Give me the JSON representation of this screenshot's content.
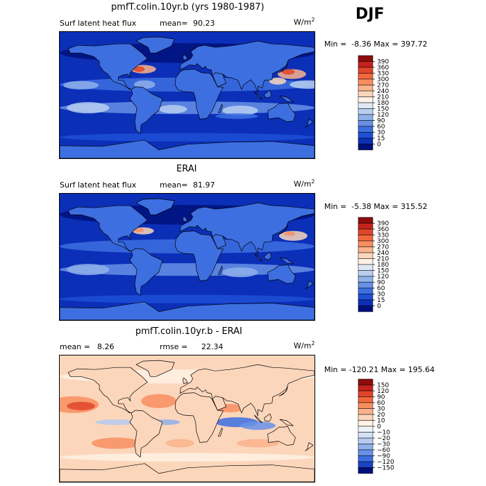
{
  "season": "DJF",
  "panels": [
    {
      "title": "pmfT.colin.10yr.b (yrs 1980-1987)",
      "left_label": "Surf latent heat flux",
      "stat_label": "mean=",
      "stat_value": "90.23",
      "stat2_label": "",
      "stat2_value": "",
      "units_base": "W/m",
      "units_exp": "2",
      "min_label": "Min =",
      "min_value": "-8.36",
      "max_label": "Max =",
      "max_value": "397.72",
      "palette": "seq",
      "ticks": [
        "390",
        "360",
        "330",
        "300",
        "270",
        "240",
        "210",
        "180",
        "150",
        "120",
        "90",
        "60",
        "30",
        "15",
        "0"
      ]
    },
    {
      "title": "ERAI",
      "left_label": "Surf latent heat flux",
      "stat_label": "mean=",
      "stat_value": "81.97",
      "stat2_label": "",
      "stat2_value": "",
      "units_base": "W/m",
      "units_exp": "2",
      "min_label": "Min =",
      "min_value": "-5.38",
      "max_label": "Max =",
      "max_value": "315.52",
      "palette": "seq",
      "ticks": [
        "390",
        "360",
        "330",
        "300",
        "270",
        "240",
        "210",
        "180",
        "150",
        "120",
        "90",
        "60",
        "30",
        "15",
        "0"
      ]
    },
    {
      "title": "pmfT.colin.10yr.b - ERAI",
      "left_label": "mean =",
      "stat_label": "",
      "stat_value": "8.26",
      "stat2_label": "rmse =",
      "stat2_value": "22.34",
      "units_base": "W/m",
      "units_exp": "2",
      "min_label": "Min =",
      "min_value": "-120.21",
      "max_label": "Max =",
      "max_value": "195.64",
      "palette": "div",
      "ticks": [
        "150",
        "120",
        "90",
        "60",
        "30",
        "20",
        "10",
        "0",
        "−10",
        "−20",
        "−30",
        "−60",
        "−90",
        "−120",
        "−150"
      ]
    }
  ],
  "colors": {
    "seq": [
      "#8b0d0d",
      "#c4221c",
      "#e0452c",
      "#f2693e",
      "#f88e60",
      "#fab38c",
      "#fcd6bb",
      "#fff1e4",
      "#dfe9f6",
      "#b9cff0",
      "#8fb0ea",
      "#6790e6",
      "#3d6fe0",
      "#1f4fd6",
      "#0c2fb8",
      "#00107a"
    ],
    "div": [
      "#8b0d0d",
      "#c4221c",
      "#e0452c",
      "#f2693e",
      "#f88e60",
      "#fab38c",
      "#fcd6bb",
      "#fff1e4",
      "#eef3fb",
      "#d4e1f5",
      "#b5caef",
      "#8fb0ea",
      "#6790e6",
      "#3d6fe0",
      "#1a44c4",
      "#00107a"
    ]
  },
  "chart_data": [
    {
      "type": "heatmap",
      "title": "pmfT.colin.10yr.b (yrs 1980-1987)",
      "field": "Surf latent heat flux",
      "units": "W/m2",
      "season": "DJF",
      "mean": 90.23,
      "min": -8.36,
      "max": 397.72,
      "colorbar_levels": [
        0,
        15,
        30,
        60,
        90,
        120,
        150,
        180,
        210,
        240,
        270,
        300,
        330,
        360,
        390
      ]
    },
    {
      "type": "heatmap",
      "title": "ERAI",
      "field": "Surf latent heat flux",
      "units": "W/m2",
      "season": "DJF",
      "mean": 81.97,
      "min": -5.38,
      "max": 315.52,
      "colorbar_levels": [
        0,
        15,
        30,
        60,
        90,
        120,
        150,
        180,
        210,
        240,
        270,
        300,
        330,
        360,
        390
      ]
    },
    {
      "type": "heatmap",
      "title": "pmfT.colin.10yr.b - ERAI",
      "units": "W/m2",
      "season": "DJF",
      "mean": 8.26,
      "rmse": 22.34,
      "min": -120.21,
      "max": 195.64,
      "colorbar_levels": [
        -150,
        -120,
        -90,
        -60,
        -30,
        -20,
        -10,
        0,
        10,
        20,
        30,
        60,
        90,
        120,
        150
      ]
    }
  ]
}
